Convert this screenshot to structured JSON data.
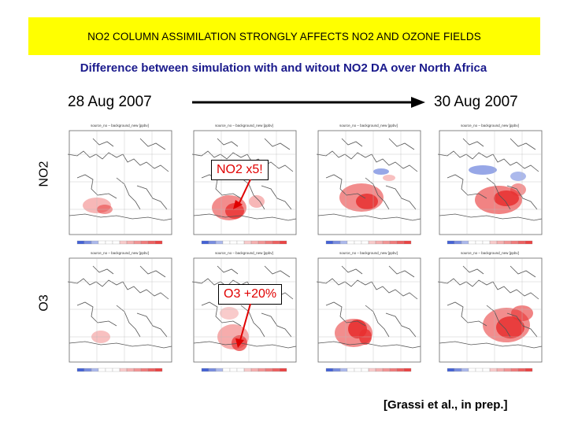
{
  "banner": {
    "text": "NO2 COLUMN ASSIMILATION STRONGLY AFFECTS NO2 AND OZONE FIELDS",
    "color": "#ffff00"
  },
  "subtitle": {
    "text": "Difference between simulation with and witout NO2 DA over North Africa",
    "color": "#1a1a8c"
  },
  "dates": {
    "start": "28 Aug 2007",
    "end": "30 Aug 2007"
  },
  "rows": {
    "no2": "NO2",
    "o3": "O3"
  },
  "panel_header": "source_no – background_new [ppbv]",
  "callouts": {
    "no2": "NO2 x5!",
    "o3": "O3 +20%",
    "color": "#e00000"
  },
  "citation": "[Grassi et al., in prep.]",
  "colors": {
    "positive": "#e83030",
    "negative": "#3050d0"
  }
}
